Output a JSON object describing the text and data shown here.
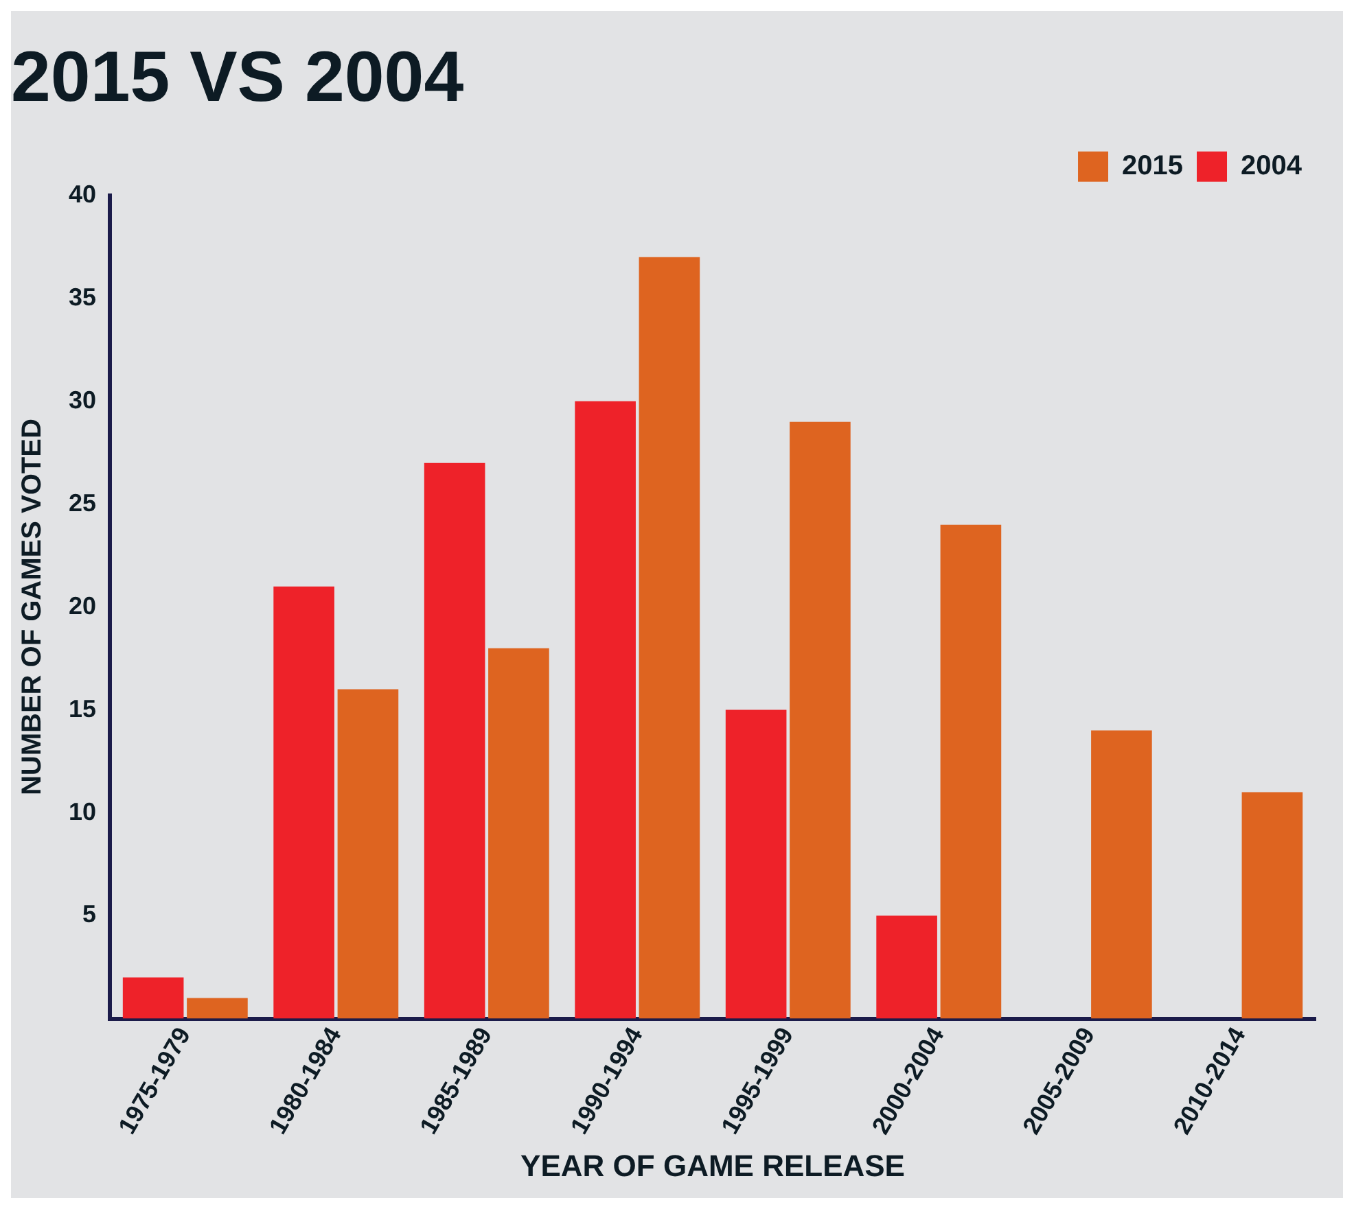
{
  "chart_data": {
    "type": "bar",
    "title": "2015 VS 2004",
    "xlabel": "YEAR OF GAME RELEASE",
    "ylabel": "NUMBER OF GAMES VOTED",
    "categories": [
      "1975-1979",
      "1980-1984",
      "1985-1989",
      "1990-1994",
      "1995-1999",
      "2000-2004",
      "2005-2009",
      "2010-2014"
    ],
    "series": [
      {
        "name": "2004",
        "color": "#ee2229",
        "values": [
          2,
          21,
          27,
          30,
          15,
          5,
          null,
          null
        ]
      },
      {
        "name": "2015",
        "color": "#de6420",
        "values": [
          1,
          16,
          18,
          37,
          29,
          24,
          14,
          11
        ]
      }
    ],
    "ylim": [
      0,
      40
    ],
    "yticks": [
      5,
      10,
      15,
      20,
      25,
      30,
      35,
      40
    ],
    "grid": false,
    "legend": "top right"
  }
}
